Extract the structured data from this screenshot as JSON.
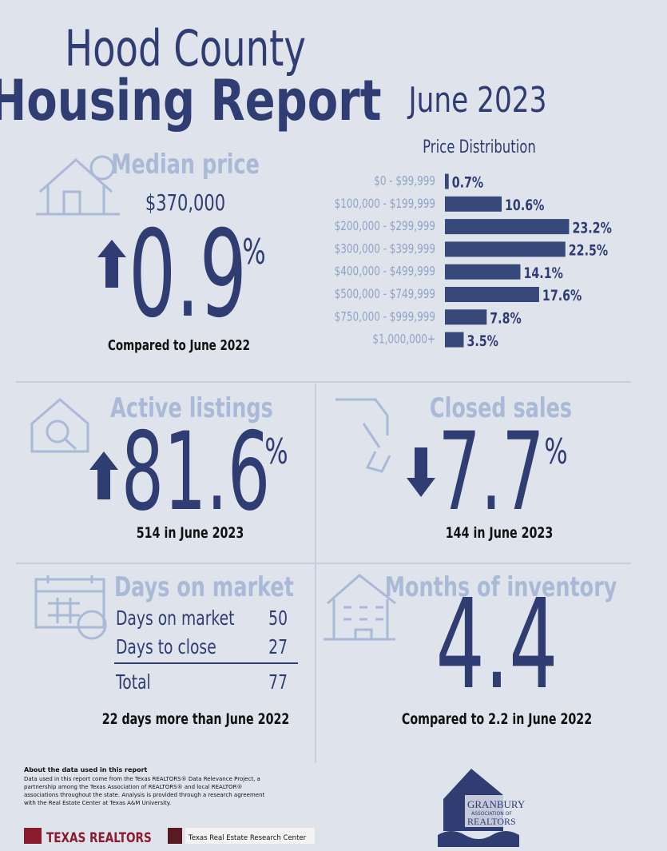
{
  "header": {
    "title_line1": "Hood County",
    "title_line2": "Housing Report",
    "date": "June 2023"
  },
  "chart_data": {
    "type": "bar",
    "orientation": "horizontal",
    "title": "Price Distribution",
    "categories": [
      "$0 - $99,999",
      "$100,000 - $199,999",
      "$200,000 - $299,999",
      "$300,000 - $399,999",
      "$400,000 - $499,999",
      "$500,000 - $749,999",
      "$750,000 - $999,999",
      "$1,000,000+"
    ],
    "values": [
      0.7,
      10.6,
      23.2,
      22.5,
      14.1,
      17.6,
      7.8,
      3.5
    ],
    "value_labels": [
      "0.7%",
      "10.6%",
      "23.2%",
      "22.5%",
      "14.1%",
      "17.6%",
      "7.8%",
      "3.5%"
    ],
    "color": "#36497a"
  },
  "median": {
    "heading": "Median price",
    "price": "$370,000",
    "change": "0.9",
    "unit": "%",
    "note": "Compared to June 2022"
  },
  "active": {
    "heading": "Active listings",
    "change": "81.6",
    "unit": "%",
    "note": "514 in June 2023"
  },
  "closed": {
    "heading": "Closed sales",
    "change": "7.7",
    "unit": "%",
    "note": "144 in June 2023"
  },
  "days": {
    "heading": "Days on market",
    "rows": [
      [
        "Days on market",
        "50"
      ],
      [
        "Days to close",
        "27"
      ]
    ],
    "total": [
      "Total",
      "77"
    ],
    "note": "22 days more than June 2022"
  },
  "inventory": {
    "heading": "Months of inventory",
    "value": "4.4",
    "note": "Compared to 2.2 in June 2022"
  },
  "footer": {
    "about_title": "About the data used in this report",
    "about_lines": [
      "Data used in this report come from the Texas REALTORS® Data Relevance Project, a",
      "partnership among the Texas Association of REALTORS® and local REALTOR®",
      "associations throughout the state. Analysis is provided through a research agreement",
      "with the Real Estate Center at Texas A&M University."
    ],
    "logo1": "TEXAS REALTORS",
    "logo2": "Texas Real Estate Research Center",
    "logo3_line1": "GRANBURY",
    "logo3_line2": "ASSOCIATION OF",
    "logo3_line3": "REALTORS"
  }
}
